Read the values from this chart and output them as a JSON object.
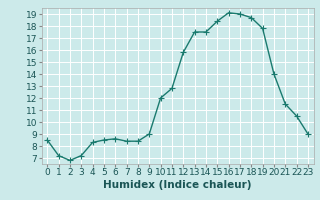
{
  "title": "",
  "xlabel": "Humidex (Indice chaleur)",
  "ylabel": "",
  "x": [
    0,
    1,
    2,
    3,
    4,
    5,
    6,
    7,
    8,
    9,
    10,
    11,
    12,
    13,
    14,
    15,
    16,
    17,
    18,
    19,
    20,
    21,
    22,
    23
  ],
  "y": [
    8.5,
    7.2,
    6.8,
    7.2,
    8.3,
    8.5,
    8.6,
    8.4,
    8.4,
    9.0,
    12.0,
    12.8,
    15.8,
    17.5,
    17.5,
    18.4,
    19.1,
    19.0,
    18.7,
    17.8,
    14.0,
    11.5,
    10.5,
    9.0
  ],
  "line_color": "#1a7a6e",
  "marker": "+",
  "marker_size": 4,
  "bg_color": "#cceaea",
  "grid_color": "#ffffff",
  "ylim": [
    6.5,
    19.5
  ],
  "xlim": [
    -0.5,
    23.5
  ],
  "yticks": [
    7,
    8,
    9,
    10,
    11,
    12,
    13,
    14,
    15,
    16,
    17,
    18,
    19
  ],
  "xticks": [
    0,
    1,
    2,
    3,
    4,
    5,
    6,
    7,
    8,
    9,
    10,
    11,
    12,
    13,
    14,
    15,
    16,
    17,
    18,
    19,
    20,
    21,
    22,
    23
  ],
  "tick_fontsize": 6.5,
  "xlabel_fontsize": 7.5,
  "linewidth": 1.0,
  "markeredgewidth": 0.8
}
